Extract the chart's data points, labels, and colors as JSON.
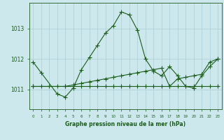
{
  "title": "Graphe pression niveau de la mer (hPa)",
  "background_color": "#cde8ed",
  "grid_color": "#aacdd5",
  "line_color": "#1a5c1a",
  "marker_color": "#1a5c1a",
  "xlim": [
    -0.5,
    23.5
  ],
  "ylim": [
    1010.35,
    1013.85
  ],
  "yticks": [
    1011,
    1012,
    1013
  ],
  "xticks": [
    0,
    1,
    2,
    3,
    4,
    5,
    6,
    7,
    8,
    9,
    10,
    11,
    12,
    13,
    14,
    15,
    16,
    17,
    18,
    19,
    20,
    21,
    22,
    23
  ],
  "series1_x": [
    0,
    1,
    3,
    4,
    5,
    6,
    7,
    8,
    9,
    10,
    11,
    12,
    13,
    14,
    15,
    16,
    17,
    18,
    19,
    20,
    21,
    22,
    23
  ],
  "series1_y": [
    1011.9,
    1011.55,
    1010.85,
    1010.75,
    1011.05,
    1011.65,
    1012.05,
    1012.45,
    1012.85,
    1013.1,
    1013.55,
    1013.45,
    1012.95,
    1012.0,
    1011.6,
    1011.45,
    1011.75,
    1011.45,
    1011.1,
    1011.05,
    1011.45,
    1011.75,
    1012.0
  ],
  "series2_x": [
    0,
    1,
    2,
    3,
    4,
    5,
    6,
    7,
    8,
    9,
    10,
    11,
    12,
    13,
    14,
    15,
    16,
    17,
    18,
    19,
    20,
    21,
    22,
    23
  ],
  "series2_y": [
    1011.1,
    1011.1,
    1011.1,
    1011.1,
    1011.1,
    1011.1,
    1011.1,
    1011.1,
    1011.1,
    1011.1,
    1011.1,
    1011.1,
    1011.1,
    1011.1,
    1011.1,
    1011.1,
    1011.1,
    1011.1,
    1011.1,
    1011.1,
    1011.1,
    1011.1,
    1011.1,
    1011.1
  ],
  "series3_x": [
    0,
    4,
    5,
    6,
    7,
    8,
    9,
    10,
    11,
    12,
    13,
    14,
    15,
    16,
    17,
    18,
    19,
    20,
    21,
    22,
    23
  ],
  "series3_y": [
    1011.1,
    1011.1,
    1011.15,
    1011.2,
    1011.25,
    1011.3,
    1011.35,
    1011.4,
    1011.45,
    1011.5,
    1011.55,
    1011.6,
    1011.65,
    1011.7,
    1011.1,
    1011.35,
    1011.4,
    1011.45,
    1011.5,
    1011.9,
    1012.0
  ],
  "axis_color": "#1a5c1a",
  "tick_color": "#1a5c1a",
  "label_color": "#1a5c1a"
}
